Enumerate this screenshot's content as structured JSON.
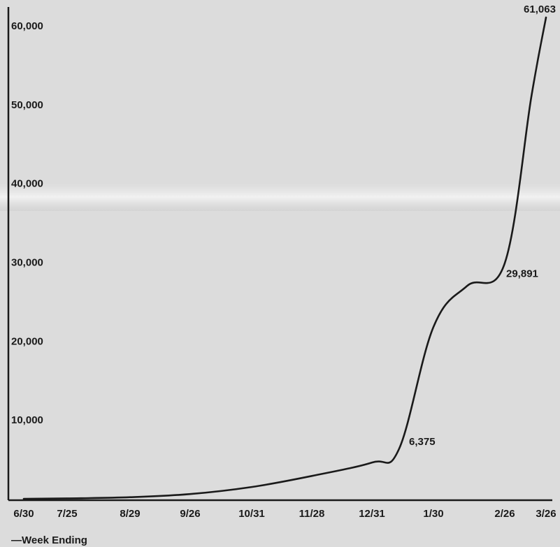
{
  "chart_data": {
    "type": "line",
    "title": "",
    "xlabel": "—Week Ending",
    "ylabel": "",
    "y_ticks": [
      "10,000",
      "20,000",
      "30,000",
      "40,000",
      "50,000",
      "60,000"
    ],
    "ylim": [
      0,
      62000
    ],
    "x_ticks": [
      "6/30",
      "7/25",
      "8/29",
      "9/26",
      "10/31",
      "11/28",
      "12/31",
      "1/30",
      "2/26",
      "3/26"
    ],
    "grid": false,
    "legend": "none",
    "series": [
      {
        "x": [
          "6/30",
          "7/25",
          "8/29",
          "9/26",
          "10/31",
          "11/28",
          "12/31",
          "1/15",
          "1/30",
          "2/12",
          "2/26",
          "3/12",
          "3/26"
        ],
        "values": [
          0,
          50,
          200,
          600,
          1500,
          2900,
          4600,
          6375,
          21800,
          27000,
          29891,
          51000,
          61063
        ]
      }
    ],
    "data_labels": [
      {
        "x": "1/15",
        "value": 6375,
        "text": "6,375"
      },
      {
        "x": "2/26",
        "value": 29891,
        "text": "29,891"
      },
      {
        "x": "3/26",
        "value": 61063,
        "text": "61,063"
      }
    ],
    "colors": {
      "line": "#1a1a1a",
      "background": "#dcdcdc",
      "axis": "#1a1a1a"
    }
  }
}
